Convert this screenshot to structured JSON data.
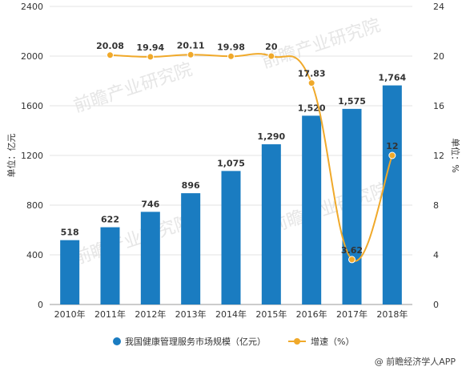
{
  "chart_data": {
    "type": "bar",
    "categories": [
      "2010年",
      "2011年",
      "2012年",
      "2013年",
      "2014年",
      "2015年",
      "2016年",
      "2017年",
      "2018年"
    ],
    "series": [
      {
        "name": "我国健康管理服务市场规模（亿元）",
        "type": "bar",
        "axis": "left",
        "values": [
          518,
          622,
          746,
          896,
          1075,
          1290,
          1520,
          1575,
          1764
        ],
        "labels": [
          "518",
          "622",
          "746",
          "896",
          "1,075",
          "1,290",
          "1,520",
          "1,575",
          "1,764"
        ],
        "color": "#1a7cc1"
      },
      {
        "name": "增速（%）",
        "type": "line",
        "axis": "right",
        "values": [
          null,
          20.08,
          19.94,
          20.11,
          19.98,
          20,
          17.83,
          3.62,
          12
        ],
        "labels": [
          "",
          "20.08",
          "19.94",
          "20.11",
          "19.98",
          "20",
          "17.83",
          "3.62",
          "12"
        ],
        "color": "#f0a92a"
      }
    ],
    "ylabel_left": "单位：亿元",
    "ylabel_right": "单位：%",
    "ylim_left": [
      0,
      2400
    ],
    "yticks_left": [
      "0",
      "400",
      "800",
      "1200",
      "1600",
      "2000",
      "2400"
    ],
    "ylim_right": [
      0,
      24
    ],
    "yticks_right": [
      "0",
      "4",
      "8",
      "12",
      "16",
      "20",
      "24"
    ],
    "grid": true,
    "legend": "bottom"
  },
  "footer": "@ 前瞻经济学人APP",
  "watermark": "前瞻产业研究院"
}
